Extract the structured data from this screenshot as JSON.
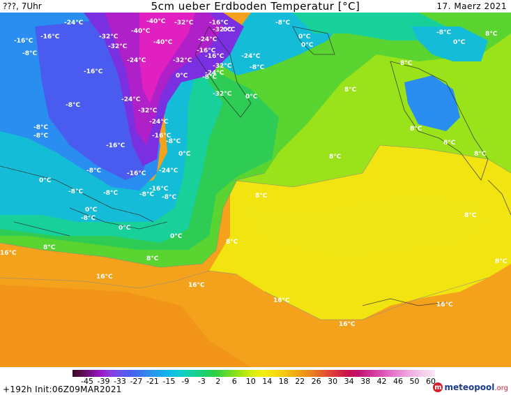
{
  "header": {
    "left": "???, 7Uhr",
    "title": "5cm ueber Erdboden Temperatur [°C]",
    "right": "17. Maerz 2021"
  },
  "map_labels": [
    {
      "id": "l1",
      "text": "-24°C"
    },
    {
      "id": "l2",
      "text": "-40°C"
    },
    {
      "id": "l3",
      "text": "-32°C"
    },
    {
      "id": "l4",
      "text": "-16°C"
    },
    {
      "id": "l5",
      "text": "0°C"
    },
    {
      "id": "l6",
      "text": "-16°C"
    },
    {
      "id": "l7",
      "text": "-16°C"
    },
    {
      "id": "l8",
      "text": "-32°C"
    },
    {
      "id": "l9",
      "text": "-40°C"
    },
    {
      "id": "l10",
      "text": "-24°C"
    },
    {
      "id": "l11",
      "text": "-32°C"
    },
    {
      "id": "l12",
      "text": "-8°C"
    },
    {
      "id": "l13",
      "text": "0°C"
    },
    {
      "id": "l14",
      "text": "-8°C"
    },
    {
      "id": "l15",
      "text": "-32°C"
    },
    {
      "id": "l16",
      "text": "-40°C"
    },
    {
      "id": "l17",
      "text": "-16°C"
    },
    {
      "id": "l18",
      "text": "0°C"
    },
    {
      "id": "l19",
      "text": "-8°C"
    },
    {
      "id": "l20",
      "text": "-24°C"
    },
    {
      "id": "l21",
      "text": "-32°C"
    },
    {
      "id": "l22",
      "text": "-16°C"
    },
    {
      "id": "l23",
      "text": "8°C"
    },
    {
      "id": "l24",
      "text": "-16°C"
    },
    {
      "id": "l25",
      "text": "-32°C"
    },
    {
      "id": "l26",
      "text": "-8°C"
    },
    {
      "id": "l27",
      "text": "-24°C"
    },
    {
      "id": "l28",
      "text": "0°C"
    },
    {
      "id": "l29",
      "text": "-8°C"
    },
    {
      "id": "l30",
      "text": "-24°C"
    },
    {
      "id": "l31",
      "text": "0°C"
    },
    {
      "id": "l32",
      "text": "-32°C"
    },
    {
      "id": "l33",
      "text": "0°C"
    },
    {
      "id": "l34",
      "text": "8°C"
    },
    {
      "id": "l35",
      "text": "-24°C"
    },
    {
      "id": "l36",
      "text": "-8°C"
    },
    {
      "id": "l37",
      "text": "-32°C"
    },
    {
      "id": "l38",
      "text": "-8°C"
    },
    {
      "id": "l39",
      "text": "-24°C"
    },
    {
      "id": "l40",
      "text": "-16°C"
    },
    {
      "id": "l41",
      "text": "-8°C"
    },
    {
      "id": "l42",
      "text": "-16°C"
    },
    {
      "id": "l43",
      "text": "8°C"
    },
    {
      "id": "l44",
      "text": "8°C"
    },
    {
      "id": "l45",
      "text": "-8°C"
    },
    {
      "id": "l46",
      "text": "0°C"
    },
    {
      "id": "l47",
      "text": "8°C"
    },
    {
      "id": "l48",
      "text": "-16°C"
    },
    {
      "id": "l49",
      "text": "-24°C"
    },
    {
      "id": "l50",
      "text": "8°C"
    },
    {
      "id": "l51",
      "text": "-8°C"
    },
    {
      "id": "l52",
      "text": "0°C"
    },
    {
      "id": "l53",
      "text": "-16°C"
    },
    {
      "id": "l54",
      "text": "8°C"
    },
    {
      "id": "l55",
      "text": "-8°C"
    },
    {
      "id": "l56",
      "text": "-8°C"
    },
    {
      "id": "l57",
      "text": "-8°C"
    },
    {
      "id": "l58",
      "text": "-8°C"
    },
    {
      "id": "l59",
      "text": "0°C"
    },
    {
      "id": "l60",
      "text": "-8°C"
    },
    {
      "id": "l61",
      "text": "8°C"
    },
    {
      "id": "l62",
      "text": "0°C"
    },
    {
      "id": "l63",
      "text": "0°C"
    },
    {
      "id": "l64",
      "text": "8°C"
    },
    {
      "id": "l65",
      "text": "16°C"
    },
    {
      "id": "l66",
      "text": "8°C"
    },
    {
      "id": "l67",
      "text": "8°C"
    },
    {
      "id": "l68",
      "text": "8°C"
    },
    {
      "id": "l69",
      "text": "16°C"
    },
    {
      "id": "l70",
      "text": "16°C"
    },
    {
      "id": "l71",
      "text": "16°C"
    },
    {
      "id": "l72",
      "text": "16°C"
    },
    {
      "id": "l73",
      "text": "16°C"
    },
    {
      "id": "l74",
      "text": "8°C"
    }
  ],
  "legend": {
    "ticks": [
      "-45",
      "-39",
      "-33",
      "-27",
      "-21",
      "-15",
      "-9",
      "-3",
      "2",
      "6",
      "10",
      "14",
      "18",
      "22",
      "26",
      "30",
      "34",
      "38",
      "42",
      "46",
      "50",
      "60"
    ],
    "colors": [
      "#3a0a22",
      "#5a0e4e",
      "#7a1090",
      "#9a18c8",
      "#8a3ae0",
      "#6a52ee",
      "#4a5cf0",
      "#3c72ee",
      "#2f8cee",
      "#1ea2ee",
      "#12b6ea",
      "#10c8d8",
      "#12d0b0",
      "#16d28a",
      "#1ed064",
      "#30d040",
      "#5ad830",
      "#86e01c",
      "#b4e810",
      "#dcee10",
      "#f2ee10",
      "#f6e010",
      "#f4cc10",
      "#f2b410",
      "#f09c10",
      "#ec8420",
      "#e6622a",
      "#e04436",
      "#d42840",
      "#c81050",
      "#c01270",
      "#cc2a90",
      "#d844aa",
      "#e062c0",
      "#e882d0",
      "#eea0dc",
      "#f2bce6",
      "#f6d4ee",
      "#fae8f6"
    ],
    "colors_meta": "gradient stops for colour bar"
  },
  "footer": {
    "init": "+192h Init:06Z09MAR2021",
    "logo_mark": "m",
    "logo_name": "meteopool",
    "logo_tld": ".org"
  },
  "palette": {
    "orange": "#f4a21c",
    "orange_deep": "#f29418",
    "yellow": "#f2e410",
    "yellow_light": "#eef018",
    "lime": "#9ae21a",
    "green": "#5ad430",
    "green_mid": "#2ecc54",
    "teal": "#18d09a",
    "cyan": "#14bcd8",
    "blue_light": "#2a8ef0",
    "blue": "#4a5cf0",
    "violet": "#7a30e0",
    "purple": "#b020c8",
    "magenta": "#e020c0"
  }
}
